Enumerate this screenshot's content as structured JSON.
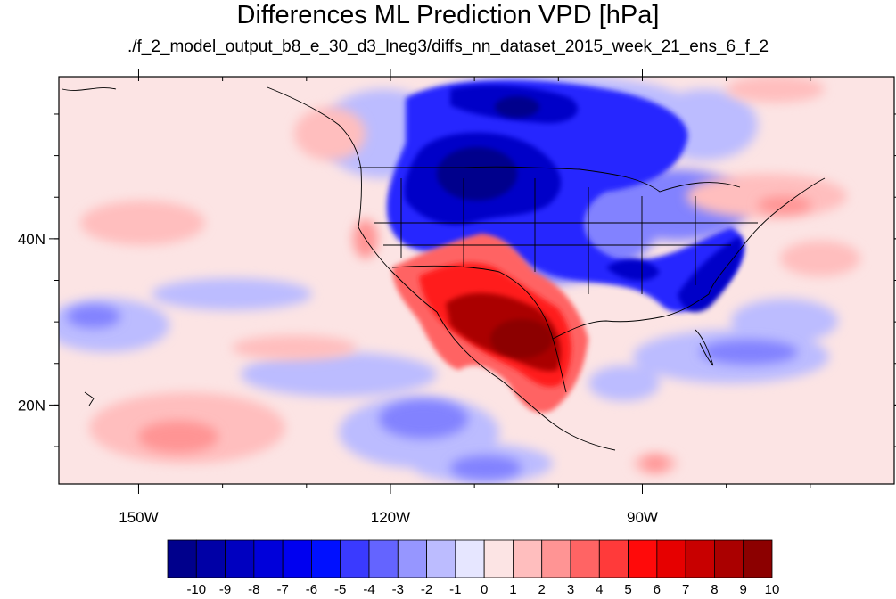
{
  "title": "Differences ML Prediction VPD [hPa]",
  "subtitle": "./f_2_model_output_b8_e_30_d3_lneg3/diffs_nn_dataset_2015_week_21_ens_6_f_2",
  "map": {
    "lon_range": [
      -159.5,
      -60
    ],
    "lat_range": [
      10.5,
      59.5
    ],
    "x_ticks": [
      {
        "value": -150,
        "label": "150W"
      },
      {
        "value": -120,
        "label": "120W"
      },
      {
        "value": -90,
        "label": "90W"
      }
    ],
    "y_ticks": [
      {
        "value": 40,
        "label": "40N"
      },
      {
        "value": 20,
        "label": "20N"
      }
    ],
    "background_color": "#fce4e4"
  },
  "colorbar": {
    "levels": [
      "-10",
      "-9",
      "-8",
      "-7",
      "-6",
      "-5",
      "-4",
      "-3",
      "-2",
      "-1",
      "0",
      "1",
      "2",
      "3",
      "4",
      "5",
      "6",
      "7",
      "8",
      "9",
      "10"
    ],
    "colors": [
      "#00008c",
      "#0000a6",
      "#0000c0",
      "#0000da",
      "#0000f0",
      "#0010ff",
      "#3a3aff",
      "#6464ff",
      "#9696ff",
      "#bcbcff",
      "#e6e6ff",
      "#fce4e4",
      "#ffbebe",
      "#ff9494",
      "#ff6464",
      "#ff3a3a",
      "#ff0a0a",
      "#e60000",
      "#c80000",
      "#aa0000",
      "#8c0000"
    ]
  }
}
